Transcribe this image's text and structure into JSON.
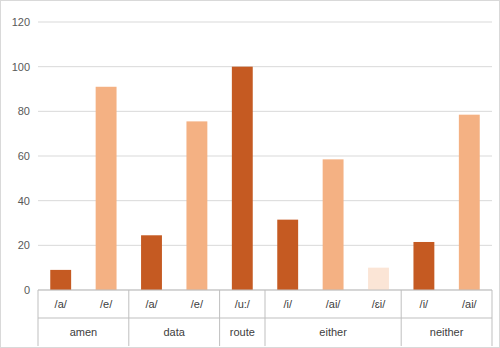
{
  "chart_data": {
    "type": "bar",
    "categories": [
      "/a/",
      "/e/",
      "/a/",
      "/e/",
      "/u:/",
      "/i/",
      "/ai/",
      "/ɛi/",
      "/i/",
      "/ai/"
    ],
    "groups": [
      "amen",
      "amen",
      "data",
      "data",
      "route",
      "either",
      "either",
      "either",
      "neither",
      "neither"
    ],
    "values": [
      9,
      91,
      24.5,
      75.5,
      100,
      31.5,
      58.5,
      10,
      21.5,
      78.5
    ],
    "colors": [
      "#c55a22",
      "#f4b183",
      "#c55a22",
      "#f4b183",
      "#c55a22",
      "#c55a22",
      "#f4b183",
      "#fbe5d6",
      "#c55a22",
      "#f4b183"
    ],
    "ylim": [
      0,
      120
    ],
    "yticks": [
      0,
      20,
      40,
      60,
      80,
      100,
      120
    ],
    "grid": true
  }
}
